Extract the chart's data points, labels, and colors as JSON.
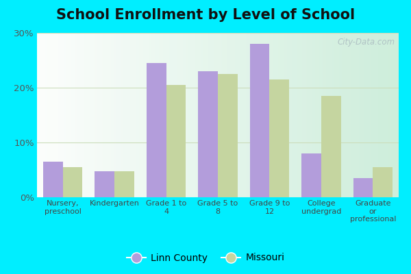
{
  "title": "School Enrollment by Level of School",
  "categories": [
    "Nursery,\npreschool",
    "Kindergarten",
    "Grade 1 to\n4",
    "Grade 5 to\n8",
    "Grade 9 to\n12",
    "College\nundergrad",
    "Graduate\nor\nprofessional"
  ],
  "linn_county": [
    6.5,
    4.8,
    24.5,
    23.0,
    28.0,
    8.0,
    3.5
  ],
  "missouri": [
    5.5,
    4.8,
    20.5,
    22.5,
    21.5,
    18.5,
    5.5
  ],
  "linn_color": "#b39ddb",
  "missouri_color": "#c5d5a0",
  "ylim": [
    0,
    30
  ],
  "yticks": [
    0,
    10,
    20,
    30
  ],
  "ytick_labels": [
    "0%",
    "10%",
    "20%",
    "30%"
  ],
  "background_outer": "#00eeff",
  "background_inner": "#e0f0e8",
  "grid_color": "#ccddbb",
  "legend_linn": "Linn County",
  "legend_mo": "Missouri",
  "title_fontsize": 15,
  "bar_width": 0.38,
  "watermark": "City-Data.com"
}
